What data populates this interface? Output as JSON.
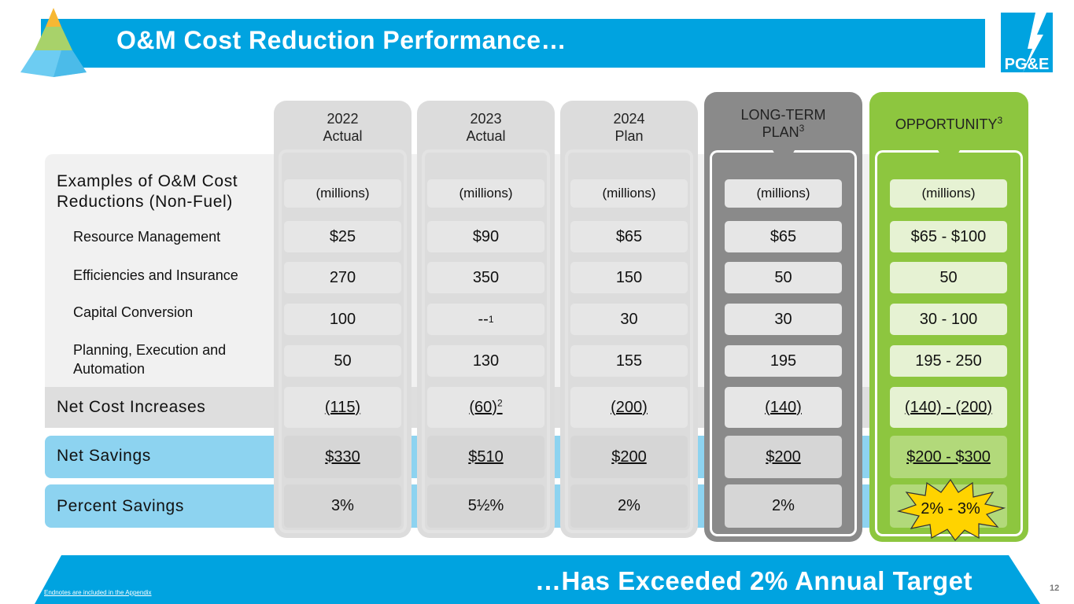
{
  "header": {
    "title": "O&M Cost Reduction Performance…",
    "logo_text": "PG&E"
  },
  "rows": {
    "examples_label": "Examples of O&M Cost Reductions (Non-Fuel)",
    "sub_items": [
      "Resource Management",
      "Efficiencies and Insurance",
      "Capital Conversion",
      "Planning, Execution and Automation"
    ],
    "net_cost_increases": "Net Cost Increases",
    "net_savings": "Net Savings",
    "percent_savings": "Percent Savings"
  },
  "columns": [
    {
      "heading_line1": "2022",
      "heading_line2": "Actual",
      "units": "(millions)",
      "values": [
        "$25",
        "270",
        "100",
        "50"
      ],
      "net_cost": "(115)",
      "net_cost_note": "",
      "net_savings": "$330",
      "percent": "3%",
      "value3_note": ""
    },
    {
      "heading_line1": "2023",
      "heading_line2": "Actual",
      "units": "(millions)",
      "values": [
        "$90",
        "350",
        "--",
        "130"
      ],
      "net_cost": "(60)",
      "net_cost_note": "2",
      "net_savings": "$510",
      "percent": "5½%",
      "value3_note": "1"
    },
    {
      "heading_line1": "2024",
      "heading_line2": "Plan",
      "units": "(millions)",
      "values": [
        "$65",
        "150",
        "30",
        "155"
      ],
      "net_cost": "(200)",
      "net_cost_note": "",
      "net_savings": "$200",
      "percent": "2%",
      "value3_note": ""
    },
    {
      "heading_line1": "LONG-TERM",
      "heading_line2": "PLAN",
      "heading_note": "3",
      "units": "(millions)",
      "values": [
        "$65",
        "50",
        "30",
        "195"
      ],
      "net_cost": "(140)",
      "net_cost_note": "",
      "net_savings": "$200",
      "percent": "2%",
      "value3_note": ""
    },
    {
      "heading_line1": "OPPORTUNITY",
      "heading_note": "3",
      "units": "(millions)",
      "values": [
        "$65 - $100",
        "50",
        "30 - 100",
        "195 - 250"
      ],
      "net_cost": "(140) - (200)",
      "net_cost_note": "",
      "net_savings": "$200 - $300",
      "percent": "2% - 3%",
      "value3_note": ""
    }
  ],
  "footer": {
    "tagline": "…Has Exceeded 2% Annual Target",
    "endnote": "Endnotes are included in the Appendix",
    "page_number": "12"
  },
  "colors": {
    "brand_blue": "#00a3e0",
    "light_blue": "#8dd3f0",
    "green": "#8dc63f",
    "gray_dark": "#8a8a8a"
  }
}
